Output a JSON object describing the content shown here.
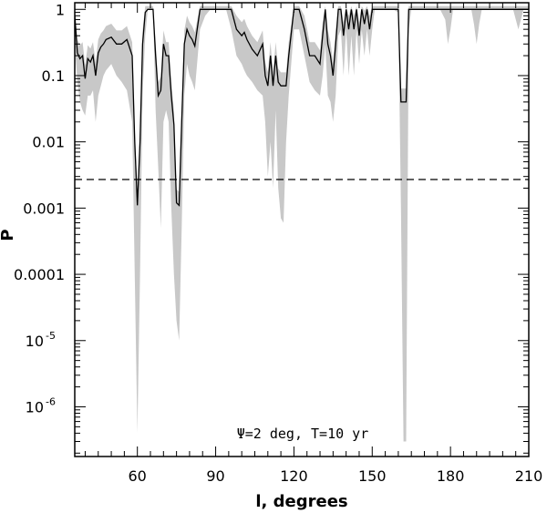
{
  "chart_data": {
    "type": "line",
    "xlabel": "l, degrees",
    "ylabel": "P",
    "xlim": [
      36,
      210
    ],
    "ylim_log10": [
      -6.75,
      0.1
    ],
    "y_scale": "log",
    "x_ticks": [
      {
        "value": 60,
        "label": "60"
      },
      {
        "value": 90,
        "label": "90"
      },
      {
        "value": 120,
        "label": "120"
      },
      {
        "value": 150,
        "label": "150"
      },
      {
        "value": 180,
        "label": "180"
      },
      {
        "value": 210,
        "label": "210"
      }
    ],
    "y_ticks": [
      {
        "value": 1,
        "label": "1"
      },
      {
        "value": 0.1,
        "label": "0.1"
      },
      {
        "value": 0.01,
        "label": "0.01"
      },
      {
        "value": 0.001,
        "label": "0.001"
      },
      {
        "value": 0.0001,
        "label": "0.0001"
      },
      {
        "value": 1e-05,
        "label": "10",
        "exp": "-5"
      },
      {
        "value": 1e-06,
        "label": "10",
        "exp": "-6"
      }
    ],
    "threshold": 0.0027,
    "annotation": "Ψ=2 deg, T=10 yr",
    "colors": {
      "line": "#000000",
      "band": "#c8c8c8",
      "threshold": "#000000"
    },
    "x": [
      36,
      37,
      38,
      39,
      40,
      41,
      42,
      43,
      44,
      45,
      46,
      47,
      48,
      50,
      52,
      54,
      56,
      58,
      59,
      60,
      61,
      62,
      63,
      64,
      65,
      66,
      67,
      68,
      69,
      70,
      71,
      72,
      73,
      74,
      75,
      76,
      77,
      78,
      79,
      80,
      81,
      82,
      84,
      86,
      88,
      90,
      92,
      94,
      96,
      98,
      100,
      101,
      102,
      104,
      106,
      108,
      109,
      110,
      111,
      112,
      113,
      114,
      115,
      116,
      117,
      118,
      120,
      122,
      124,
      126,
      128,
      130,
      131,
      132,
      133,
      134,
      135,
      136,
      137,
      138,
      139,
      140,
      141,
      142,
      143,
      144,
      145,
      146,
      147,
      148,
      149,
      150,
      151,
      152,
      153,
      154,
      155,
      156,
      158,
      160,
      161,
      162,
      163,
      164,
      165,
      166,
      168,
      172,
      176,
      178,
      179,
      180,
      181,
      182,
      184,
      186,
      188,
      189,
      190,
      191,
      192,
      196,
      200,
      204,
      206,
      208,
      210
    ],
    "series": [
      {
        "values": [
          0.8,
          0.22,
          0.18,
          0.2,
          0.09,
          0.18,
          0.16,
          0.2,
          0.1,
          0.22,
          0.27,
          0.3,
          0.35,
          0.38,
          0.3,
          0.3,
          0.35,
          0.2,
          0.01,
          0.0011,
          0.01,
          0.3,
          0.9,
          1,
          1,
          1,
          0.2,
          0.05,
          0.06,
          0.3,
          0.2,
          0.2,
          0.05,
          0.018,
          0.0012,
          0.0011,
          0.02,
          0.3,
          0.5,
          0.4,
          0.35,
          0.28,
          1,
          1,
          1,
          1,
          1,
          1,
          1,
          0.5,
          0.4,
          0.45,
          0.35,
          0.25,
          0.2,
          0.3,
          0.1,
          0.07,
          0.2,
          0.07,
          0.2,
          0.08,
          0.07,
          0.07,
          0.07,
          0.2,
          1,
          1,
          0.5,
          0.2,
          0.2,
          0.15,
          0.4,
          1,
          0.3,
          0.2,
          0.1,
          0.3,
          1,
          1,
          0.4,
          1,
          0.5,
          1,
          0.5,
          1,
          0.4,
          1,
          0.6,
          1,
          0.5,
          1,
          1,
          1,
          1,
          1,
          1,
          1,
          1,
          1,
          0.04,
          0.04,
          0.04,
          1,
          1,
          1,
          1,
          1,
          1,
          1,
          1,
          1,
          1,
          1,
          1,
          1,
          1,
          1,
          1,
          1,
          1,
          1,
          1,
          1,
          1,
          1,
          1
        ]
      }
    ],
    "band_low": [
      0.3,
      0.08,
      0.04,
      0.03,
      0.025,
      0.05,
      0.05,
      0.06,
      0.02,
      0.05,
      0.07,
      0.1,
      0.12,
      0.15,
      0.1,
      0.08,
      0.06,
      0.02,
      0.0001,
      4e-07,
      0.0001,
      0.05,
      0.4,
      1,
      1,
      1,
      0.03,
      0.004,
      0.0005,
      0.02,
      0.03,
      0.02,
      0.001,
      0.0001,
      2e-05,
      1e-05,
      0.0005,
      0.05,
      0.15,
      0.1,
      0.08,
      0.06,
      0.5,
      0.8,
      1,
      1,
      1,
      1,
      0.5,
      0.2,
      0.15,
      0.12,
      0.1,
      0.08,
      0.06,
      0.05,
      0.02,
      0.003,
      0.01,
      0.002,
      0.03,
      0.002,
      0.0007,
      0.0006,
      0.01,
      0.05,
      0.5,
      0.5,
      0.2,
      0.08,
      0.06,
      0.05,
      0.1,
      0.3,
      0.05,
      0.04,
      0.02,
      0.05,
      0.4,
      0.5,
      0.1,
      0.5,
      0.1,
      0.4,
      0.1,
      0.5,
      0.15,
      0.5,
      0.2,
      0.5,
      0.2,
      0.5,
      1,
      1,
      1,
      1,
      1,
      1,
      1,
      0.9,
      0.001,
      3e-07,
      3e-07,
      0.5,
      1,
      1,
      1,
      1,
      1,
      0.7,
      0.3,
      0.5,
      1,
      1,
      1,
      1,
      1,
      0.6,
      0.3,
      0.6,
      1,
      1,
      1,
      1,
      0.5,
      1,
      1
    ]
  }
}
